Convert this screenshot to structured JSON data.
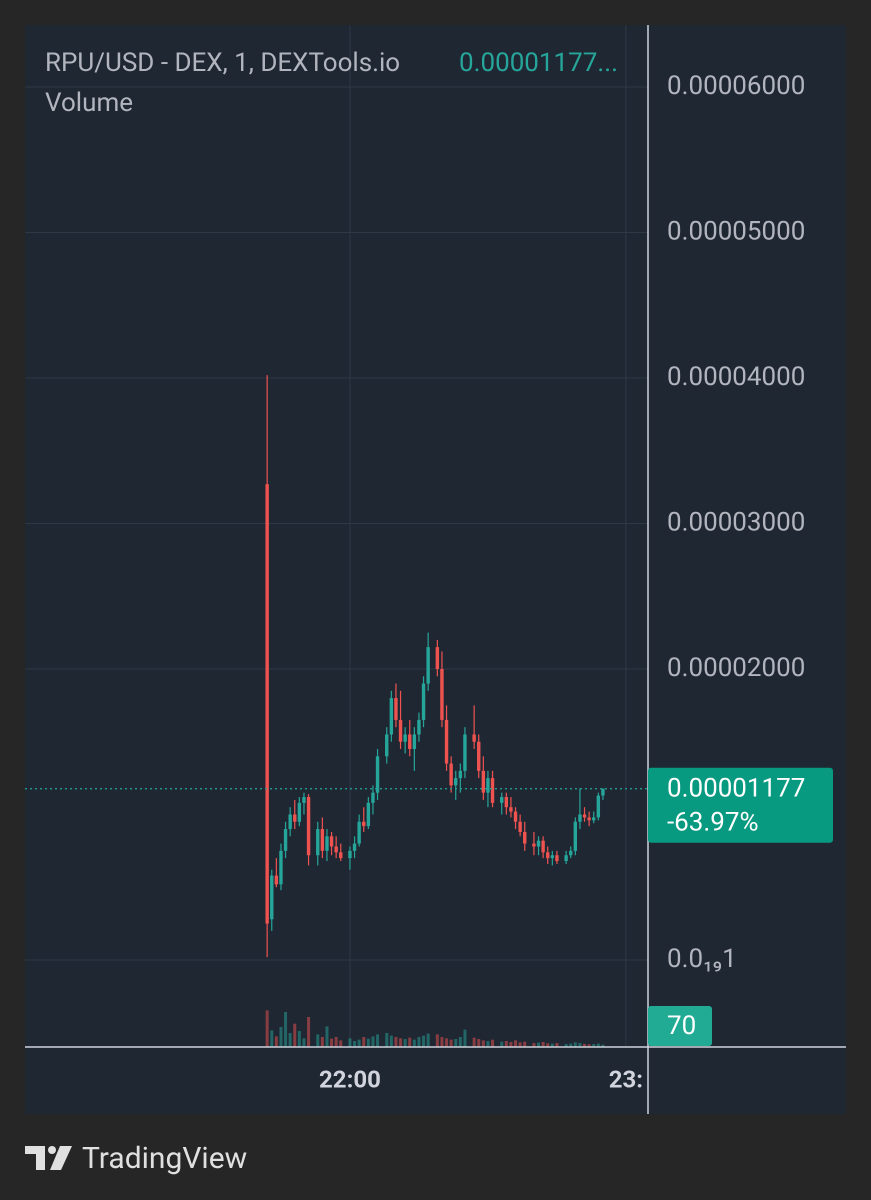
{
  "chart_data": {
    "type": "candlestick",
    "title": "RPU/USD - DEX, 1, DEXTools.io",
    "header_price": "0.00001177...",
    "volume_title": "Volume",
    "last_price_label": "0.00001177",
    "change_label": "-63.97%",
    "footer": "TradingView",
    "up_color": "#26a69a",
    "down_color": "#ef5350",
    "grid": true,
    "xlim": [
      1249.35,
      1384.8
    ],
    "xticks": [
      {
        "value": 1320,
        "label": "22:00"
      },
      {
        "value": 1380,
        "label": "23:"
      }
    ],
    "ylim": [
      -5.98e-06,
      6.426e-05
    ],
    "yticks": [
      {
        "value": 1e-20,
        "label": "0.0₁₉1"
      },
      {
        "value": 2e-05,
        "label": "0.00002000"
      },
      {
        "value": 3e-05,
        "label": "0.00003000"
      },
      {
        "value": 4e-05,
        "label": "0.00004000"
      },
      {
        "value": 5e-05,
        "label": "0.00005000"
      },
      {
        "value": 6e-05,
        "label": "0.00006000"
      }
    ],
    "volume_lim": [
      0,
      2610
    ],
    "x": [
      1302,
      1303,
      1304,
      1305,
      1306,
      1307,
      1308,
      1309,
      1310,
      1311,
      1313,
      1314,
      1315,
      1316,
      1317,
      1318,
      1320,
      1321,
      1322,
      1323,
      1324,
      1325,
      1326,
      1328,
      1329,
      1330,
      1331,
      1332,
      1333,
      1334,
      1335,
      1336,
      1337,
      1339,
      1340,
      1341,
      1342,
      1343,
      1344,
      1345,
      1347,
      1348,
      1349,
      1350,
      1351,
      1353,
      1354,
      1355,
      1356,
      1357,
      1358,
      1360,
      1361,
      1362,
      1363,
      1364,
      1365,
      1367,
      1368,
      1369,
      1370,
      1371,
      1372,
      1373,
      1374,
      1375
    ],
    "open": [
      3.27e-05,
      2.8e-06,
      5.8e-06,
      5.2e-06,
      7.5e-06,
      9e-06,
      1e-05,
      9.5e-06,
      1.08e-05,
      1.12e-05,
      7.2e-06,
      9e-06,
      7.5e-06,
      8.5e-06,
      7.8e-06,
      7.4e-06,
      7e-06,
      7.5e-06,
      8e-06,
      9.5e-06,
      9.2e-06,
      1.08e-05,
      1.15e-05,
      1.4e-05,
      1.55e-05,
      1.8e-05,
      1.65e-05,
      1.5e-05,
      1.55e-05,
      1.45e-05,
      1.55e-05,
      1.65e-05,
      1.9e-05,
      2.15e-05,
      2e-05,
      1.65e-05,
      1.35e-05,
      1.2e-05,
      1.25e-05,
      1.3e-05,
      1.55e-05,
      1.5e-05,
      1.3e-05,
      1.15e-05,
      1.25e-05,
      1.08e-05,
      1.12e-05,
      1.05e-05,
      1.02e-05,
      9.5e-06,
      8.8e-06,
      8e-06,
      7.8e-06,
      8.2e-06,
      7.4e-06,
      7e-06,
      7.2e-06,
      6.8e-06,
      7.2e-06,
      7.5e-06,
      9.5e-06,
      1e-05,
      9.8e-06,
      9.6e-06,
      9.8e-06,
      1.13e-05
    ],
    "high": [
      4.02e-05,
      6.2e-06,
      7e-06,
      8e-06,
      9.5e-06,
      1.05e-05,
      1.1e-05,
      1.12e-05,
      1.15e-05,
      1.14e-05,
      9.5e-06,
      9.8e-06,
      9e-06,
      8.8e-06,
      8.5e-06,
      8e-06,
      7.8e-06,
      8.5e-06,
      1e-05,
      1.05e-05,
      1.12e-05,
      1.2e-05,
      1.45e-05,
      1.6e-05,
      1.85e-05,
      1.9e-05,
      1.85e-05,
      1.6e-05,
      1.65e-05,
      1.6e-05,
      1.7e-05,
      1.95e-05,
      2.25e-05,
      2.2e-05,
      2.12e-05,
      1.75e-05,
      1.4e-05,
      1.3e-05,
      1.35e-05,
      1.6e-05,
      1.75e-05,
      1.55e-05,
      1.4e-05,
      1.3e-05,
      1.3e-05,
      1.15e-05,
      1.15e-05,
      1.12e-05,
      1.05e-05,
      1e-05,
      9.5e-06,
      8.8e-06,
      8.5e-06,
      8.5e-06,
      7.8e-06,
      7.5e-06,
      7.5e-06,
      7.5e-06,
      7.8e-06,
      9.8e-06,
      1.18e-05,
      1.05e-05,
      1.02e-05,
      1.02e-05,
      1.15e-05,
      1.18e-05
    ],
    "low": [
      2e-07,
      2e-06,
      5e-06,
      4.8e-06,
      7e-06,
      8.5e-06,
      9e-06,
      9.2e-06,
      1e-05,
      6.5e-06,
      6.5e-06,
      7e-06,
      6.8e-06,
      7.2e-06,
      7e-06,
      6.8e-06,
      6.2e-06,
      7e-06,
      7.8e-06,
      8.8e-06,
      9e-06,
      1e-05,
      1.1e-05,
      1.35e-05,
      1.5e-05,
      1.6e-05,
      1.45e-05,
      1.42e-05,
      1.4e-05,
      1.3e-05,
      1.5e-05,
      1.6e-05,
      1.85e-05,
      1.95e-05,
      1.6e-05,
      1.3e-05,
      1.15e-05,
      1.1e-05,
      1.15e-05,
      1.25e-05,
      1.45e-05,
      1.25e-05,
      1.1e-05,
      1.05e-05,
      1.05e-05,
      1e-05,
      1e-05,
      9.8e-06,
      9e-06,
      8.5e-06,
      7.5e-06,
      7.2e-06,
      7.2e-06,
      7e-06,
      6.6e-06,
      6.5e-06,
      6.6e-06,
      6.6e-06,
      7e-06,
      7.2e-06,
      9e-06,
      9.5e-06,
      9.2e-06,
      9.4e-06,
      9.6e-06,
      1.1e-05
    ],
    "close": [
      2.5e-06,
      5.8e-06,
      5.2e-06,
      7.5e-06,
      9e-06,
      1e-05,
      9.5e-06,
      1.08e-05,
      1.12e-05,
      7.2e-06,
      9e-06,
      7.5e-06,
      8.5e-06,
      7.8e-06,
      7.4e-06,
      7e-06,
      7.5e-06,
      8e-06,
      9.5e-06,
      9.2e-06,
      1.08e-05,
      1.15e-05,
      1.4e-05,
      1.55e-05,
      1.8e-05,
      1.65e-05,
      1.5e-05,
      1.55e-05,
      1.45e-05,
      1.55e-05,
      1.65e-05,
      1.9e-05,
      2.15e-05,
      2e-05,
      1.65e-05,
      1.35e-05,
      1.2e-05,
      1.25e-05,
      1.3e-05,
      1.55e-05,
      1.5e-05,
      1.3e-05,
      1.15e-05,
      1.25e-05,
      1.08e-05,
      1.12e-05,
      1.05e-05,
      1.02e-05,
      9.5e-06,
      8.8e-06,
      8e-06,
      7.8e-06,
      8.2e-06,
      7.4e-06,
      7e-06,
      7.2e-06,
      6.8e-06,
      7.2e-06,
      7.5e-06,
      9.5e-06,
      1e-05,
      9.8e-06,
      9.6e-06,
      9.8e-06,
      1.13e-05,
      1.177e-05
    ],
    "volume": [
      1100,
      500,
      320,
      600,
      1050,
      420,
      700,
      480,
      260,
      900,
      380,
      300,
      620,
      250,
      300,
      200,
      260,
      180,
      220,
      300,
      250,
      320,
      380,
      420,
      340,
      300,
      260,
      240,
      280,
      220,
      300,
      340,
      400,
      380,
      300,
      260,
      220,
      240,
      300,
      520,
      280,
      240,
      200,
      180,
      220,
      160,
      180,
      150,
      200,
      140,
      160,
      120,
      130,
      150,
      110,
      100,
      120,
      90,
      100,
      140,
      120,
      90,
      80,
      90,
      100,
      70
    ],
    "volume_label": "70"
  }
}
